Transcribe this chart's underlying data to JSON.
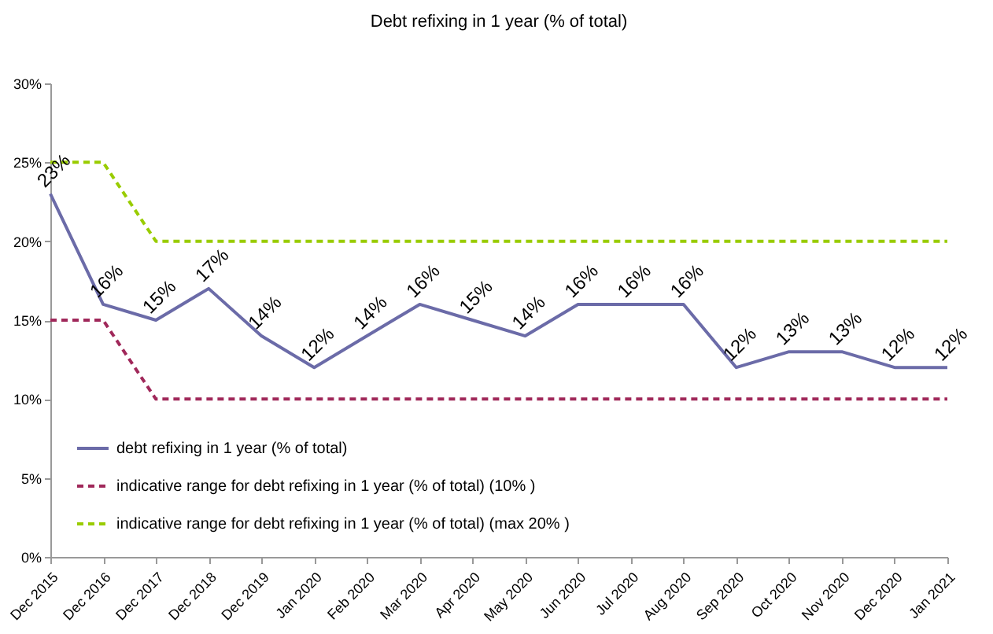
{
  "chart_data": {
    "type": "line",
    "title": "Debt refixing in 1 year (% of total)",
    "categories": [
      "Dec 2015",
      "Dec 2016",
      "Dec 2017",
      "Dec 2018",
      "Dec 2019",
      "Jan 2020",
      "Feb 2020",
      "Mar 2020",
      "Apr 2020",
      "May 2020",
      "Jun 2020",
      "Jul 2020",
      "Aug 2020",
      "Sep 2020",
      "Oct 2020",
      "Nov 2020",
      "Dec 2020",
      "Jan 2021"
    ],
    "series": [
      {
        "name": "debt refixing in 1 year (% of total)",
        "color": "#6b6ba8",
        "line_style": "solid",
        "values": [
          23,
          16,
          15,
          17,
          14,
          12,
          14,
          16,
          15,
          14,
          16,
          16,
          16,
          12,
          13,
          13,
          12,
          12
        ],
        "value_labels": [
          "23%",
          "16%",
          "15%",
          "17%",
          "14%",
          "12%",
          "14%",
          "16%",
          "15%",
          "14%",
          "16%",
          "16%",
          "16%",
          "12%",
          "13%",
          "13%",
          "12%",
          "12%"
        ]
      },
      {
        "name": "indicative range for debt refixing in 1 year (% of total) (10% )",
        "color": "#a0285a",
        "line_style": "dashed",
        "values": [
          15,
          15,
          10,
          10,
          10,
          10,
          10,
          10,
          10,
          10,
          10,
          10,
          10,
          10,
          10,
          10,
          10,
          10
        ]
      },
      {
        "name": "indicative range for debt refixing in 1 year (% of total) (max 20% )",
        "color": "#99cc00",
        "line_style": "dashed",
        "values": [
          25,
          25,
          20,
          20,
          20,
          20,
          20,
          20,
          20,
          20,
          20,
          20,
          20,
          20,
          20,
          20,
          20,
          20
        ]
      }
    ],
    "ylim": [
      0,
      30
    ],
    "yticks": [
      {
        "value": 0,
        "label": "0%"
      },
      {
        "value": 5,
        "label": "5%"
      },
      {
        "value": 10,
        "label": "10%"
      },
      {
        "value": 15,
        "label": "15%"
      },
      {
        "value": 20,
        "label": "20%"
      },
      {
        "value": 25,
        "label": "25%"
      },
      {
        "value": 30,
        "label": "30%"
      }
    ],
    "grid": false,
    "legend": "bottom left",
    "marker": "none"
  }
}
